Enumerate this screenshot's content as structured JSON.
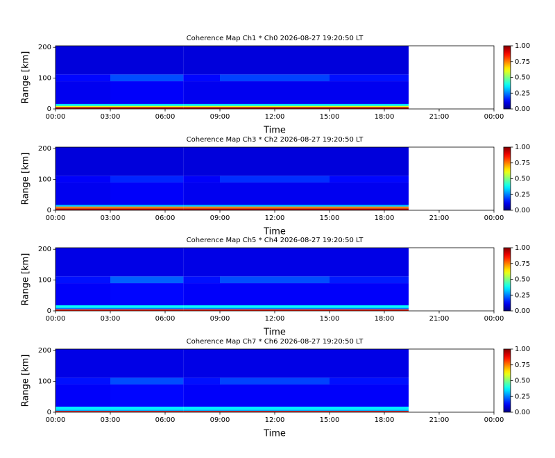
{
  "chart_data": [
    {
      "type": "heatmap",
      "title": "Coherence Map Ch1 * Ch0 2026-08-27 19:20:50 LT",
      "xlabel": "Time",
      "ylabel": "Range [km]",
      "colormap": "jet",
      "xlim": [
        0,
        24
      ],
      "xticks": [
        {
          "value": 0,
          "label": "00:00"
        },
        {
          "value": 3,
          "label": "03:00"
        },
        {
          "value": 6,
          "label": "06:00"
        },
        {
          "value": 9,
          "label": "09:00"
        },
        {
          "value": 12,
          "label": "12:00"
        },
        {
          "value": 15,
          "label": "15:00"
        },
        {
          "value": 18,
          "label": "18:00"
        },
        {
          "value": 21,
          "label": "21:00"
        },
        {
          "value": 24,
          "label": "00:00"
        }
      ],
      "ylim": [
        0,
        205
      ],
      "yticks": [
        0,
        100,
        200
      ],
      "x_edges": [
        0,
        3,
        7,
        9,
        15,
        19.33
      ],
      "y_edges": [
        0,
        6,
        10,
        16,
        90,
        112,
        205
      ],
      "values": [
        [
          0.95,
          0.95,
          0.95,
          0.95,
          0.95
        ],
        [
          0.6,
          0.6,
          0.6,
          0.6,
          0.6
        ],
        [
          0.35,
          0.35,
          0.35,
          0.35,
          0.35
        ],
        [
          0.11,
          0.12,
          0.11,
          0.11,
          0.11
        ],
        [
          0.13,
          0.2,
          0.13,
          0.19,
          0.14
        ],
        [
          0.09,
          0.09,
          0.09,
          0.09,
          0.09
        ]
      ],
      "clim": [
        0,
        1
      ],
      "cticks": [
        {
          "value": 0,
          "label": "0.00"
        },
        {
          "value": 0.25,
          "label": "0.25"
        },
        {
          "value": 0.5,
          "label": "0.50"
        },
        {
          "value": 0.75,
          "label": "0.75"
        },
        {
          "value": 1,
          "label": "1.00"
        }
      ]
    },
    {
      "type": "heatmap",
      "title": "Coherence Map Ch3 * Ch2 2026-08-27 19:20:50 LT",
      "xlabel": "Time",
      "ylabel": "Range [km]",
      "colormap": "jet",
      "xlim": [
        0,
        24
      ],
      "xticks": [
        {
          "value": 0,
          "label": "00:00"
        },
        {
          "value": 3,
          "label": "03:00"
        },
        {
          "value": 6,
          "label": "06:00"
        },
        {
          "value": 9,
          "label": "09:00"
        },
        {
          "value": 12,
          "label": "12:00"
        },
        {
          "value": 15,
          "label": "15:00"
        },
        {
          "value": 18,
          "label": "18:00"
        },
        {
          "value": 21,
          "label": "21:00"
        },
        {
          "value": 24,
          "label": "00:00"
        }
      ],
      "ylim": [
        0,
        205
      ],
      "yticks": [
        0,
        100,
        200
      ],
      "x_edges": [
        0,
        3,
        7,
        9,
        15,
        19.33
      ],
      "y_edges": [
        0,
        6,
        12,
        18,
        90,
        112,
        205
      ],
      "values": [
        [
          0.95,
          0.95,
          0.95,
          0.95,
          0.95
        ],
        [
          0.75,
          0.75,
          0.75,
          0.75,
          0.75
        ],
        [
          0.3,
          0.3,
          0.3,
          0.3,
          0.3
        ],
        [
          0.11,
          0.12,
          0.11,
          0.11,
          0.11
        ],
        [
          0.12,
          0.16,
          0.12,
          0.17,
          0.13
        ],
        [
          0.09,
          0.09,
          0.09,
          0.09,
          0.09
        ]
      ],
      "clim": [
        0,
        1
      ],
      "cticks": [
        {
          "value": 0,
          "label": "0.00"
        },
        {
          "value": 0.25,
          "label": "0.25"
        },
        {
          "value": 0.5,
          "label": "0.50"
        },
        {
          "value": 0.75,
          "label": "0.75"
        },
        {
          "value": 1,
          "label": "1.00"
        }
      ]
    },
    {
      "type": "heatmap",
      "title": "Coherence Map Ch5 * Ch4 2026-08-27 19:20:50 LT",
      "xlabel": "Time",
      "ylabel": "Range [km]",
      "colormap": "jet",
      "xlim": [
        0,
        24
      ],
      "xticks": [
        {
          "value": 0,
          "label": "00:00"
        },
        {
          "value": 3,
          "label": "03:00"
        },
        {
          "value": 6,
          "label": "06:00"
        },
        {
          "value": 9,
          "label": "09:00"
        },
        {
          "value": 12,
          "label": "12:00"
        },
        {
          "value": 15,
          "label": "15:00"
        },
        {
          "value": 18,
          "label": "18:00"
        },
        {
          "value": 21,
          "label": "21:00"
        },
        {
          "value": 24,
          "label": "00:00"
        }
      ],
      "ylim": [
        0,
        205
      ],
      "yticks": [
        0,
        100,
        200
      ],
      "x_edges": [
        0,
        3,
        7,
        9,
        15,
        19.33
      ],
      "y_edges": [
        0,
        5,
        10,
        18,
        90,
        112,
        205
      ],
      "values": [
        [
          0.85,
          0.85,
          0.85,
          0.85,
          0.85
        ],
        [
          0.25,
          0.25,
          0.25,
          0.25,
          0.25
        ],
        [
          0.38,
          0.38,
          0.38,
          0.38,
          0.38
        ],
        [
          0.12,
          0.13,
          0.12,
          0.12,
          0.12
        ],
        [
          0.14,
          0.22,
          0.14,
          0.2,
          0.15
        ],
        [
          0.1,
          0.1,
          0.1,
          0.1,
          0.1
        ]
      ],
      "clim": [
        0,
        1
      ],
      "cticks": [
        {
          "value": 0,
          "label": "0.00"
        },
        {
          "value": 0.25,
          "label": "0.25"
        },
        {
          "value": 0.5,
          "label": "0.50"
        },
        {
          "value": 0.75,
          "label": "0.75"
        },
        {
          "value": 1,
          "label": "1.00"
        }
      ]
    },
    {
      "type": "heatmap",
      "title": "Coherence Map Ch7 * Ch6 2026-08-27 19:20:50 LT",
      "xlabel": "Time",
      "ylabel": "Range [km]",
      "colormap": "jet",
      "xlim": [
        0,
        24
      ],
      "xticks": [
        {
          "value": 0,
          "label": "00:00"
        },
        {
          "value": 3,
          "label": "03:00"
        },
        {
          "value": 6,
          "label": "06:00"
        },
        {
          "value": 9,
          "label": "09:00"
        },
        {
          "value": 12,
          "label": "12:00"
        },
        {
          "value": 15,
          "label": "15:00"
        },
        {
          "value": 18,
          "label": "18:00"
        },
        {
          "value": 21,
          "label": "21:00"
        },
        {
          "value": 24,
          "label": "00:00"
        }
      ],
      "ylim": [
        0,
        205
      ],
      "yticks": [
        0,
        100,
        200
      ],
      "x_edges": [
        0,
        3,
        7,
        9,
        15,
        19.33
      ],
      "y_edges": [
        0,
        4,
        8,
        18,
        90,
        112,
        205
      ],
      "values": [
        [
          0.9,
          0.9,
          0.9,
          0.9,
          0.9
        ],
        [
          0.3,
          0.3,
          0.3,
          0.3,
          0.3
        ],
        [
          0.36,
          0.36,
          0.36,
          0.36,
          0.36
        ],
        [
          0.12,
          0.13,
          0.12,
          0.12,
          0.12
        ],
        [
          0.14,
          0.2,
          0.14,
          0.19,
          0.14
        ],
        [
          0.1,
          0.1,
          0.1,
          0.1,
          0.1
        ]
      ],
      "clim": [
        0,
        1
      ],
      "cticks": [
        {
          "value": 0,
          "label": "0.00"
        },
        {
          "value": 0.25,
          "label": "0.25"
        },
        {
          "value": 0.5,
          "label": "0.50"
        },
        {
          "value": 0.75,
          "label": "0.75"
        },
        {
          "value": 1,
          "label": "1.00"
        }
      ]
    }
  ]
}
